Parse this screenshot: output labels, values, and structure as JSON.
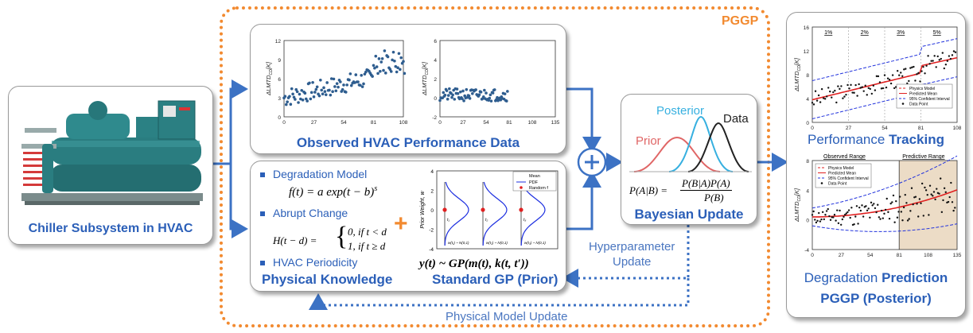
{
  "pggp_label": "PGGP",
  "chiller": {
    "title": "Chiller Subsystem in HVAC"
  },
  "observed": {
    "title": "Observed HVAC Performance Data",
    "left_plot": {
      "ylabel": "ΔLMTD",
      "ylabel_sub": "CD",
      "ylabel_unit": "[K]",
      "yticks": [
        "12",
        "9",
        "6",
        "3",
        "0"
      ],
      "xticks": [
        "0",
        "27",
        "54",
        "81",
        "108"
      ]
    },
    "right_plot": {
      "ylabel": "ΔLMTD",
      "ylabel_sub": "CD",
      "ylabel_unit": "[K]",
      "yticks": [
        "6",
        "4",
        "2",
        "0",
        "-2"
      ],
      "xticks": [
        "0",
        "27",
        "54",
        "81",
        "108",
        "135"
      ]
    }
  },
  "knowledge": {
    "title": "Physical Knowledge",
    "bullets": [
      "Degradation Model",
      "Abrupt Change",
      "HVAC Periodicity"
    ],
    "formula1_lhs": "f(t) = ",
    "formula1_rhs": "a exp(t − b)",
    "formula1_sup": "s",
    "formula2_lhs": "H(t − d) =",
    "formula2_case1": "0,  if t < d",
    "formula2_case2": "1,  if t ≥ d"
  },
  "gp": {
    "title": "Standard GP (Prior)",
    "ylabel": "Prior Weight, w",
    "yticks": [
      "4",
      "2",
      "0",
      "-2",
      "-4"
    ],
    "legend": [
      "Mean",
      "PDF",
      "Random f"
    ],
    "formula": "y(t) ~ GP(m(t), k(t, t′))",
    "sub_labels": [
      "w(t₁) ~ N(0,1)",
      "w(t₂) ~ N(0,1)",
      "w(t₃) ~ N(0,1)"
    ],
    "t_labels": [
      "t₁",
      "t₂",
      "t₃"
    ]
  },
  "bayes": {
    "title": "Bayesian Update",
    "prior": "Prior",
    "posterior": "Posterior",
    "data": "Data",
    "formula_lhs": "P(A|B) =",
    "formula_num": "P(B|A)P(A)",
    "formula_den": "P(B)"
  },
  "hyperparameter_update": [
    "Hyperparameter",
    "Update"
  ],
  "physical_model_update": "Physical Model Update",
  "tracking": {
    "title_a": "Performance ",
    "title_b": "Tracking",
    "ylabel": "ΔLMTD",
    "ylabel_sub": "CD",
    "ylabel_unit": "[K]",
    "yticks": [
      "16",
      "12",
      "8",
      "4",
      "0"
    ],
    "xticks": [
      "0",
      "27",
      "54",
      "81",
      "108"
    ],
    "segments": [
      "1%",
      "2%",
      "3%",
      "5%"
    ],
    "legend": [
      "Physics Model",
      "Predicted Mean",
      "95% Confident Interval",
      "Data Point"
    ]
  },
  "prediction": {
    "title_a": "Degradation ",
    "title_b": "Prediction",
    "ylabel": "ΔLMTD",
    "ylabel_sub": "CD",
    "ylabel_unit": "[K]",
    "yticks": [
      "8",
      "4",
      "0",
      "-4"
    ],
    "xticks": [
      "0",
      "27",
      "54",
      "81",
      "108",
      "135"
    ],
    "observed_range": "Observed Range",
    "predictive_range": "Predictive Range",
    "legend": [
      "Physics Model",
      "Predicted Mean",
      "95% Confident Interval",
      "Data Point"
    ]
  },
  "posterior_title": "PGGP (Posterior)",
  "colors": {
    "blue": "#2b5fb8",
    "orange": "#f28a30",
    "arrow": "#3c72c4",
    "red": "#e02020",
    "dash_blue": "#2233dd",
    "tan": "#ecdcc6"
  },
  "icons": {
    "plus": "circle-plus-icon"
  }
}
